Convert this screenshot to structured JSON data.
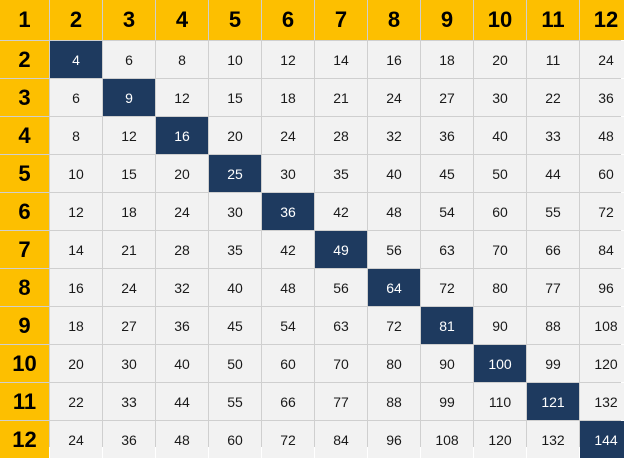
{
  "header": [
    "1",
    "2",
    "3",
    "4",
    "5",
    "6",
    "7",
    "8",
    "9",
    "10",
    "11",
    "12"
  ],
  "rows": [
    {
      "label": "2",
      "values": [
        "4",
        "6",
        "8",
        "10",
        "12",
        "14",
        "16",
        "18",
        "20",
        "11",
        "24"
      ]
    },
    {
      "label": "3",
      "values": [
        "6",
        "9",
        "12",
        "15",
        "18",
        "21",
        "24",
        "27",
        "30",
        "22",
        "36"
      ]
    },
    {
      "label": "4",
      "values": [
        "8",
        "12",
        "16",
        "20",
        "24",
        "28",
        "32",
        "36",
        "40",
        "33",
        "48"
      ]
    },
    {
      "label": "5",
      "values": [
        "10",
        "15",
        "20",
        "25",
        "30",
        "35",
        "40",
        "45",
        "50",
        "44",
        "60"
      ]
    },
    {
      "label": "6",
      "values": [
        "12",
        "18",
        "24",
        "30",
        "36",
        "42",
        "48",
        "54",
        "60",
        "55",
        "72"
      ]
    },
    {
      "label": "7",
      "values": [
        "14",
        "21",
        "28",
        "35",
        "42",
        "49",
        "56",
        "63",
        "70",
        "66",
        "84"
      ]
    },
    {
      "label": "8",
      "values": [
        "16",
        "24",
        "32",
        "40",
        "48",
        "56",
        "64",
        "72",
        "80",
        "77",
        "96"
      ]
    },
    {
      "label": "9",
      "values": [
        "18",
        "27",
        "36",
        "45",
        "54",
        "63",
        "72",
        "81",
        "90",
        "88",
        "108"
      ]
    },
    {
      "label": "10",
      "values": [
        "20",
        "30",
        "40",
        "50",
        "60",
        "70",
        "80",
        "90",
        "100",
        "99",
        "120"
      ]
    },
    {
      "label": "11",
      "values": [
        "22",
        "33",
        "44",
        "55",
        "66",
        "77",
        "88",
        "99",
        "110",
        "121",
        "132"
      ]
    },
    {
      "label": "12",
      "values": [
        "24",
        "36",
        "48",
        "60",
        "72",
        "84",
        "96",
        "108",
        "120",
        "132",
        "144"
      ]
    }
  ],
  "colors": {
    "header_bg": "#fdbf00",
    "diagonal_bg": "#1e3a5f",
    "cell_bg": "#f2f2f2"
  }
}
